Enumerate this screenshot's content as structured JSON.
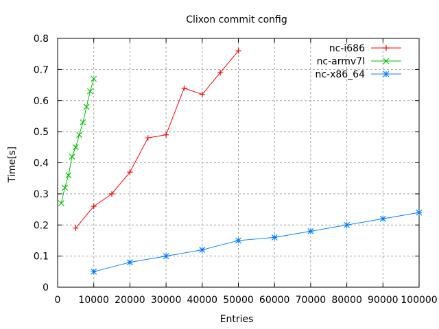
{
  "chart_data": {
    "type": "line",
    "title": "Clixon commit config",
    "xlabel": "Entries",
    "ylabel": "Time[s]",
    "xlim": [
      0,
      100000
    ],
    "ylim": [
      0,
      0.8
    ],
    "xticks": [
      0,
      10000,
      20000,
      30000,
      40000,
      50000,
      60000,
      70000,
      80000,
      90000,
      100000
    ],
    "yticks": [
      0,
      0.1,
      0.2,
      0.3,
      0.4,
      0.5,
      0.6,
      0.7,
      0.8
    ],
    "xtick_labels": [
      "0",
      "10000",
      "20000",
      "30000",
      "40000",
      "50000",
      "60000",
      "70000",
      "80000",
      "90000",
      "100000"
    ],
    "ytick_labels": [
      "0",
      "0.1",
      "0.2",
      "0.3",
      "0.4",
      "0.5",
      "0.6",
      "0.7",
      "0.8"
    ],
    "grid": true,
    "legend_position": "top-right",
    "series": [
      {
        "name": "nc-i686",
        "color": "#ff0000",
        "marker": "plus",
        "x": [
          5000,
          10000,
          15000,
          20000,
          25000,
          30000,
          35000,
          40000,
          45000,
          50000
        ],
        "y": [
          0.19,
          0.26,
          0.3,
          0.37,
          0.48,
          0.49,
          0.64,
          0.62,
          0.69,
          0.76
        ]
      },
      {
        "name": "nc-armv7l",
        "color": "#00c000",
        "marker": "cross",
        "x": [
          1000,
          2000,
          3000,
          4000,
          5000,
          6000,
          7000,
          8000,
          9000,
          10000
        ],
        "y": [
          0.27,
          0.32,
          0.36,
          0.42,
          0.45,
          0.49,
          0.53,
          0.58,
          0.63,
          0.67
        ]
      },
      {
        "name": "nc-x86_64",
        "color": "#0080ff",
        "marker": "star",
        "x": [
          10000,
          20000,
          30000,
          40000,
          50000,
          60000,
          70000,
          80000,
          90000,
          100000
        ],
        "y": [
          0.05,
          0.08,
          0.1,
          0.12,
          0.15,
          0.16,
          0.18,
          0.2,
          0.22,
          0.24
        ]
      }
    ]
  }
}
